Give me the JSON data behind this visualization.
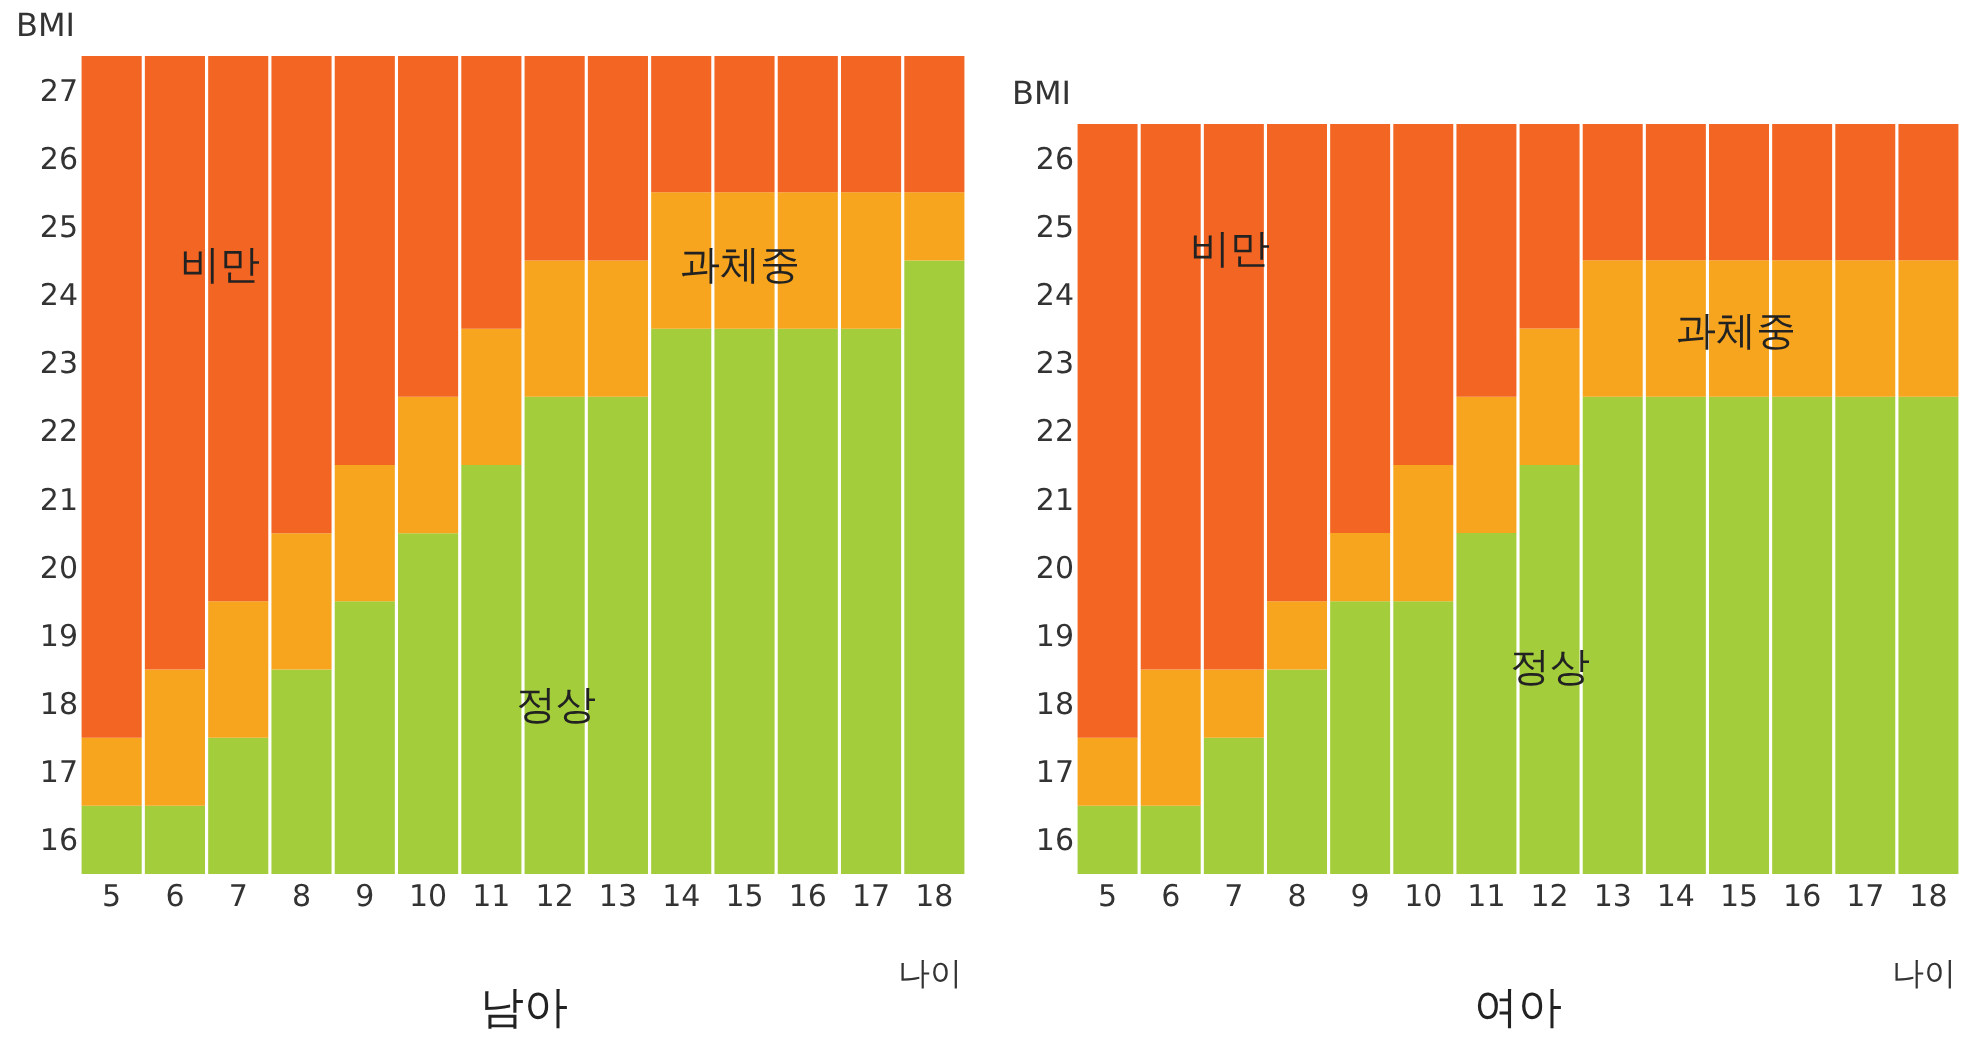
{
  "chart_data": [
    {
      "type": "bar",
      "title": "남아",
      "xlabel": "나이",
      "ylabel": "BMI",
      "legend": false,
      "categories": [
        "5",
        "6",
        "7",
        "8",
        "9",
        "10",
        "11",
        "12",
        "13",
        "14",
        "15",
        "16",
        "17",
        "18"
      ],
      "ylim": [
        15.5,
        27.5
      ],
      "yticks": [
        16,
        17,
        18,
        19,
        20,
        21,
        22,
        23,
        24,
        25,
        26,
        27
      ],
      "series": [
        {
          "name": "정상",
          "color": "#a3cd3b",
          "base": [
            15.5,
            15.5,
            15.5,
            15.5,
            15.5,
            15.5,
            15.5,
            15.5,
            15.5,
            15.5,
            15.5,
            15.5,
            15.5,
            15.5
          ],
          "values": [
            1,
            1,
            2,
            3,
            4,
            5,
            6,
            7,
            7,
            8,
            8,
            8,
            8,
            9
          ]
        },
        {
          "name": "과체중",
          "color": "#f7a51e",
          "base": [
            16.5,
            16.5,
            17.5,
            18.5,
            19.5,
            20.5,
            21.5,
            22.5,
            22.5,
            23.5,
            23.5,
            23.5,
            23.5,
            24.5
          ],
          "values": [
            1,
            2,
            2,
            2,
            2,
            2,
            2,
            2,
            2,
            2,
            2,
            2,
            2,
            1
          ]
        },
        {
          "name": "비만",
          "color": "#f26522",
          "base": [
            17.5,
            18.5,
            19.5,
            20.5,
            21.5,
            22.5,
            23.5,
            24.5,
            24.5,
            25.5,
            25.5,
            25.5,
            25.5,
            25.5
          ],
          "values": [
            10,
            9,
            8,
            7,
            6,
            5,
            4,
            3,
            3,
            2,
            2,
            2,
            2,
            2
          ]
        }
      ]
    },
    {
      "type": "bar",
      "title": "여아",
      "xlabel": "나이",
      "ylabel": "BMI",
      "legend": false,
      "categories": [
        "5",
        "6",
        "7",
        "8",
        "9",
        "10",
        "11",
        "12",
        "13",
        "14",
        "15",
        "16",
        "17",
        "18"
      ],
      "ylim": [
        15.5,
        26.5
      ],
      "yticks": [
        16,
        17,
        18,
        19,
        20,
        21,
        22,
        23,
        24,
        25,
        26
      ],
      "series": [
        {
          "name": "정상",
          "color": "#a3cd3b",
          "base": [
            15.5,
            15.5,
            15.5,
            15.5,
            15.5,
            15.5,
            15.5,
            15.5,
            15.5,
            15.5,
            15.5,
            15.5,
            15.5,
            15.5
          ],
          "values": [
            1,
            1,
            2,
            3,
            4,
            4,
            5,
            6,
            7,
            7,
            7,
            7,
            7,
            7
          ]
        },
        {
          "name": "과체중",
          "color": "#f7a51e",
          "base": [
            16.5,
            16.5,
            17.5,
            18.5,
            19.5,
            19.5,
            20.5,
            21.5,
            22.5,
            22.5,
            22.5,
            22.5,
            22.5,
            22.5
          ],
          "values": [
            1,
            2,
            1,
            1,
            1,
            2,
            2,
            2,
            2,
            2,
            2,
            2,
            2,
            2
          ]
        },
        {
          "name": "비만",
          "color": "#f26522",
          "base": [
            17.5,
            18.5,
            18.5,
            19.5,
            20.5,
            21.5,
            22.5,
            23.5,
            24.5,
            24.5,
            24.5,
            24.5,
            24.5,
            24.5
          ],
          "values": [
            9,
            8,
            8,
            7,
            6,
            5,
            4,
            3,
            2,
            2,
            2,
            2,
            2,
            2
          ]
        }
      ]
    }
  ]
}
